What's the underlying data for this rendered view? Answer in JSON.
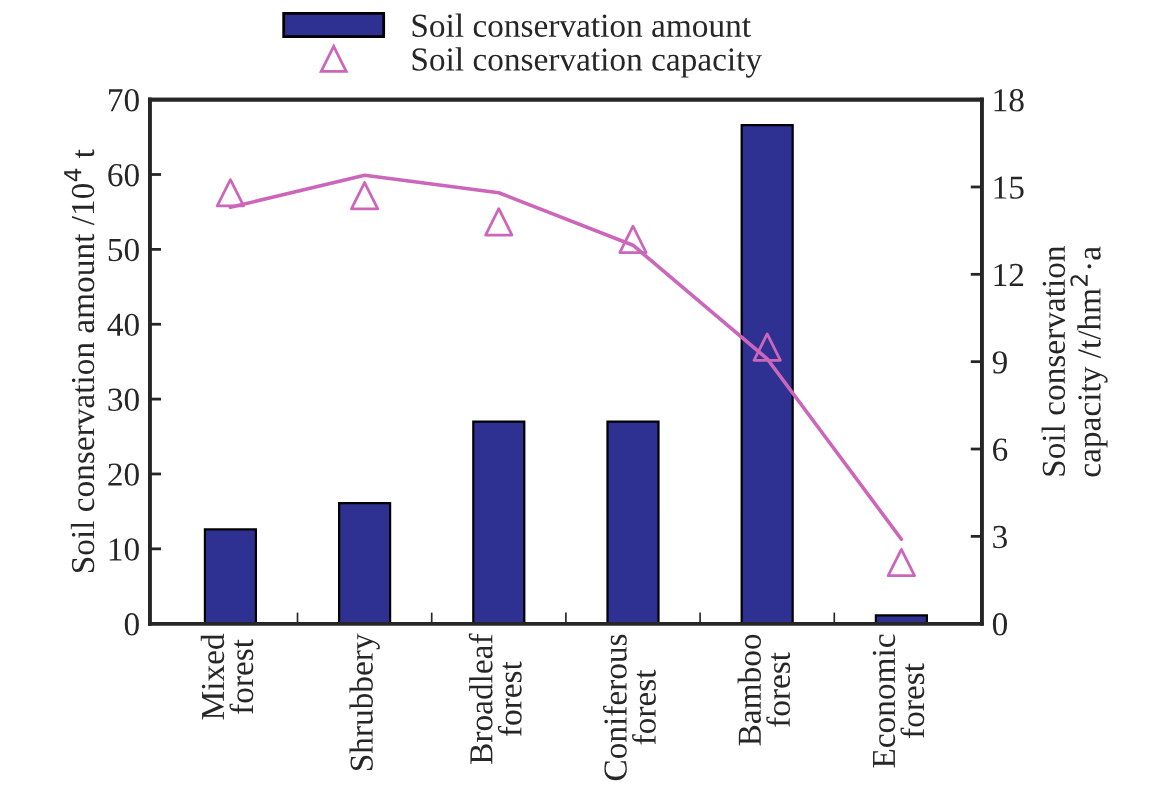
{
  "chart_data": {
    "type": "bar",
    "categories": [
      "Mixed\nforest",
      "Shrubbery",
      "Broadleaf\nforest",
      "Coniferous\nforest",
      "Bamboo\nforest",
      "Economic\nforest"
    ],
    "series": [
      {
        "name": "Soil conservation amount",
        "color": "#2e3192",
        "values": [
          12.6,
          16.1,
          27.0,
          27.0,
          66.6,
          1.1
        ]
      },
      {
        "name": "Soil conservation capacity",
        "type": "scatter",
        "axis": "y2",
        "marker": "triangle",
        "color": "#cc66bb",
        "values": [
          14.8,
          14.7,
          13.8,
          13.2,
          9.5,
          2.1
        ]
      },
      {
        "type": "line",
        "axis": "y2",
        "color": "#cc66bb",
        "values": [
          14.3,
          15.4,
          14.8,
          13.0,
          9.1,
          2.9
        ]
      }
    ],
    "ylabel": "Soil conservation amount /10$^{4}$ t",
    "y2label": "Soil conservation\ncapacity /t/hm$^{2}$·a",
    "ylim": [
      0,
      70
    ],
    "yticks": [
      0,
      10,
      20,
      30,
      40,
      50,
      60,
      70
    ],
    "y2lim": [
      0,
      18
    ],
    "y2ticks": [
      0,
      3,
      6,
      9,
      12,
      15,
      18
    ],
    "legend": "top",
    "grid": false
  }
}
